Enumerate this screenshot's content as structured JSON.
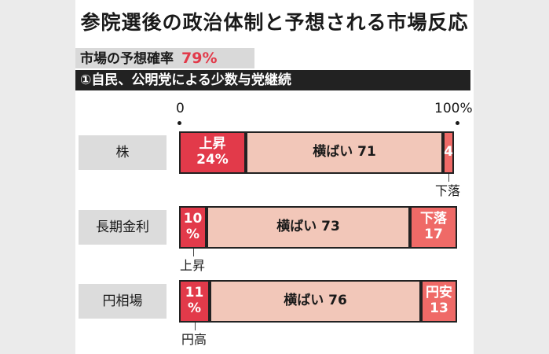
{
  "title": "参院選後の政治体制と予想される市場反応",
  "probability": {
    "label": "市場の予想確率",
    "value": "79%"
  },
  "scenario": "①自民、公明党による少数与党継続",
  "axis": {
    "start": "0",
    "end": "100%"
  },
  "colors": {
    "up": "#e23a4a",
    "flat": "#f2c7b9",
    "down": "#ef6a67"
  },
  "chart_data": {
    "type": "bar",
    "orientation": "horizontal",
    "stacked": true,
    "xlim": [
      0,
      100
    ],
    "categories": [
      "株",
      "長期金利",
      "円相場"
    ],
    "rows": [
      {
        "label": "株",
        "segments": [
          {
            "text": [
              "上昇",
              "24%"
            ],
            "value": 24,
            "kind": "up"
          },
          {
            "text": [
              "横ばい 71"
            ],
            "value": 71,
            "kind": "flat"
          },
          {
            "text": [
              "4"
            ],
            "value": 4,
            "kind": "down"
          }
        ],
        "callout": {
          "text": "下落",
          "segment": 2
        }
      },
      {
        "label": "長期金利",
        "segments": [
          {
            "text": [
              "10",
              "%"
            ],
            "value": 10,
            "kind": "up"
          },
          {
            "text": [
              "横ばい 73"
            ],
            "value": 73,
            "kind": "flat"
          },
          {
            "text": [
              "下落",
              "17"
            ],
            "value": 17,
            "kind": "down"
          }
        ],
        "callout": {
          "text": "上昇",
          "segment": 0
        }
      },
      {
        "label": "円相場",
        "segments": [
          {
            "text": [
              "11",
              "%"
            ],
            "value": 11,
            "kind": "up"
          },
          {
            "text": [
              "横ばい 76"
            ],
            "value": 76,
            "kind": "flat"
          },
          {
            "text": [
              "円安",
              "13"
            ],
            "value": 13,
            "kind": "down"
          }
        ],
        "callout": {
          "text": "円高",
          "segment": 0
        }
      }
    ]
  }
}
